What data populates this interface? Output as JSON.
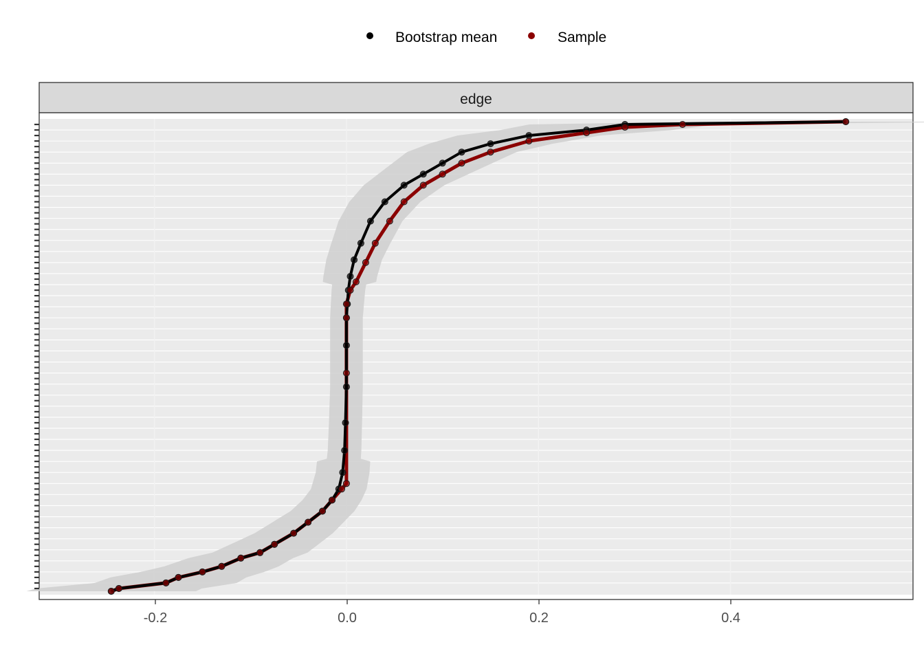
{
  "chart_data": {
    "type": "line",
    "facet": "edge",
    "legend": {
      "position": "top",
      "items": [
        {
          "label": "Bootstrap mean",
          "color": "#000000"
        },
        {
          "label": "Sample",
          "color": "#8b0000"
        }
      ]
    },
    "x_axis": {
      "ticks": [
        -0.2,
        0.0,
        0.2,
        0.4
      ],
      "tick_labels": [
        "-0.2",
        "0.0",
        "0.2",
        "0.4"
      ],
      "range": [
        -0.32,
        0.59
      ]
    },
    "y_axis": {
      "tick_labels_visible": false,
      "n_edges": 171
    },
    "grid": true,
    "series": [
      {
        "name": "Bootstrap mean",
        "color": "#000000",
        "points": [
          [
            -0.245,
            1
          ],
          [
            -0.237,
            2
          ],
          [
            -0.188,
            4
          ],
          [
            -0.175,
            6
          ],
          [
            -0.15,
            8
          ],
          [
            -0.13,
            10
          ],
          [
            -0.11,
            13
          ],
          [
            -0.09,
            15
          ],
          [
            -0.075,
            18
          ],
          [
            -0.055,
            22
          ],
          [
            -0.04,
            26
          ],
          [
            -0.025,
            30
          ],
          [
            -0.015,
            34
          ],
          [
            -0.008,
            38
          ],
          [
            -0.004,
            44
          ],
          [
            -0.002,
            52
          ],
          [
            -0.001,
            62
          ],
          [
            0.0,
            75
          ],
          [
            0.0,
            90
          ],
          [
            0.0,
            100
          ],
          [
            0.001,
            105
          ],
          [
            0.002,
            110
          ],
          [
            0.004,
            115
          ],
          [
            0.008,
            121
          ],
          [
            0.015,
            127
          ],
          [
            0.025,
            135
          ],
          [
            0.04,
            142
          ],
          [
            0.06,
            148
          ],
          [
            0.08,
            152
          ],
          [
            0.1,
            156
          ],
          [
            0.12,
            160
          ],
          [
            0.15,
            163
          ],
          [
            0.19,
            166
          ],
          [
            0.25,
            168
          ],
          [
            0.29,
            170
          ],
          [
            0.52,
            171
          ]
        ]
      },
      {
        "name": "Sample",
        "color": "#8b0000",
        "points": [
          [
            -0.245,
            1
          ],
          [
            -0.237,
            2
          ],
          [
            -0.188,
            4
          ],
          [
            -0.175,
            6
          ],
          [
            -0.15,
            8
          ],
          [
            -0.13,
            10
          ],
          [
            -0.11,
            13
          ],
          [
            -0.09,
            15
          ],
          [
            -0.075,
            18
          ],
          [
            -0.055,
            22
          ],
          [
            -0.04,
            26
          ],
          [
            -0.025,
            30
          ],
          [
            -0.015,
            34
          ],
          [
            -0.005,
            38
          ],
          [
            0.0,
            40
          ],
          [
            0.0,
            80
          ],
          [
            0.0,
            100
          ],
          [
            0.0,
            105
          ],
          [
            0.004,
            110
          ],
          [
            0.01,
            113
          ],
          [
            0.02,
            120
          ],
          [
            0.03,
            127
          ],
          [
            0.045,
            135
          ],
          [
            0.06,
            142
          ],
          [
            0.08,
            148
          ],
          [
            0.1,
            152
          ],
          [
            0.12,
            156
          ],
          [
            0.15,
            160
          ],
          [
            0.19,
            164
          ],
          [
            0.25,
            167
          ],
          [
            0.29,
            169
          ],
          [
            0.35,
            170
          ],
          [
            0.52,
            171
          ]
        ]
      }
    ]
  }
}
